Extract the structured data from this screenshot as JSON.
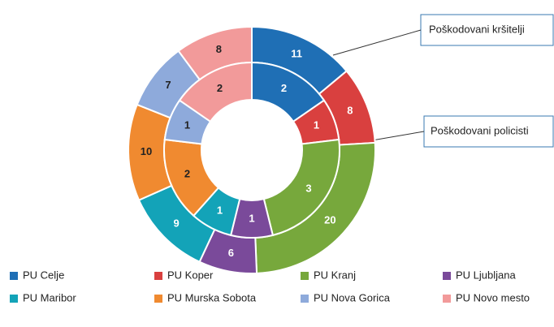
{
  "chart_data": {
    "type": "doughnut",
    "categories": [
      "PU Celje",
      "PU Koper",
      "PU Kranj",
      "PU Ljubljana",
      "PU Maribor",
      "PU Murska Sobota",
      "PU Nova Gorica",
      "PU Novo mesto"
    ],
    "colors": [
      "#1f6fb5",
      "#d9403f",
      "#77a83c",
      "#7a4a9a",
      "#13a3b8",
      "#f08a30",
      "#8eaadb",
      "#f29a9a"
    ],
    "series": [
      {
        "name": "Poškodovani kršitelji",
        "values": [
          11,
          8,
          20,
          6,
          9,
          10,
          7,
          8
        ]
      },
      {
        "name": "Poškodovani policisti",
        "values": [
          2,
          1,
          3,
          1,
          1,
          2,
          1,
          2
        ]
      }
    ]
  }
}
